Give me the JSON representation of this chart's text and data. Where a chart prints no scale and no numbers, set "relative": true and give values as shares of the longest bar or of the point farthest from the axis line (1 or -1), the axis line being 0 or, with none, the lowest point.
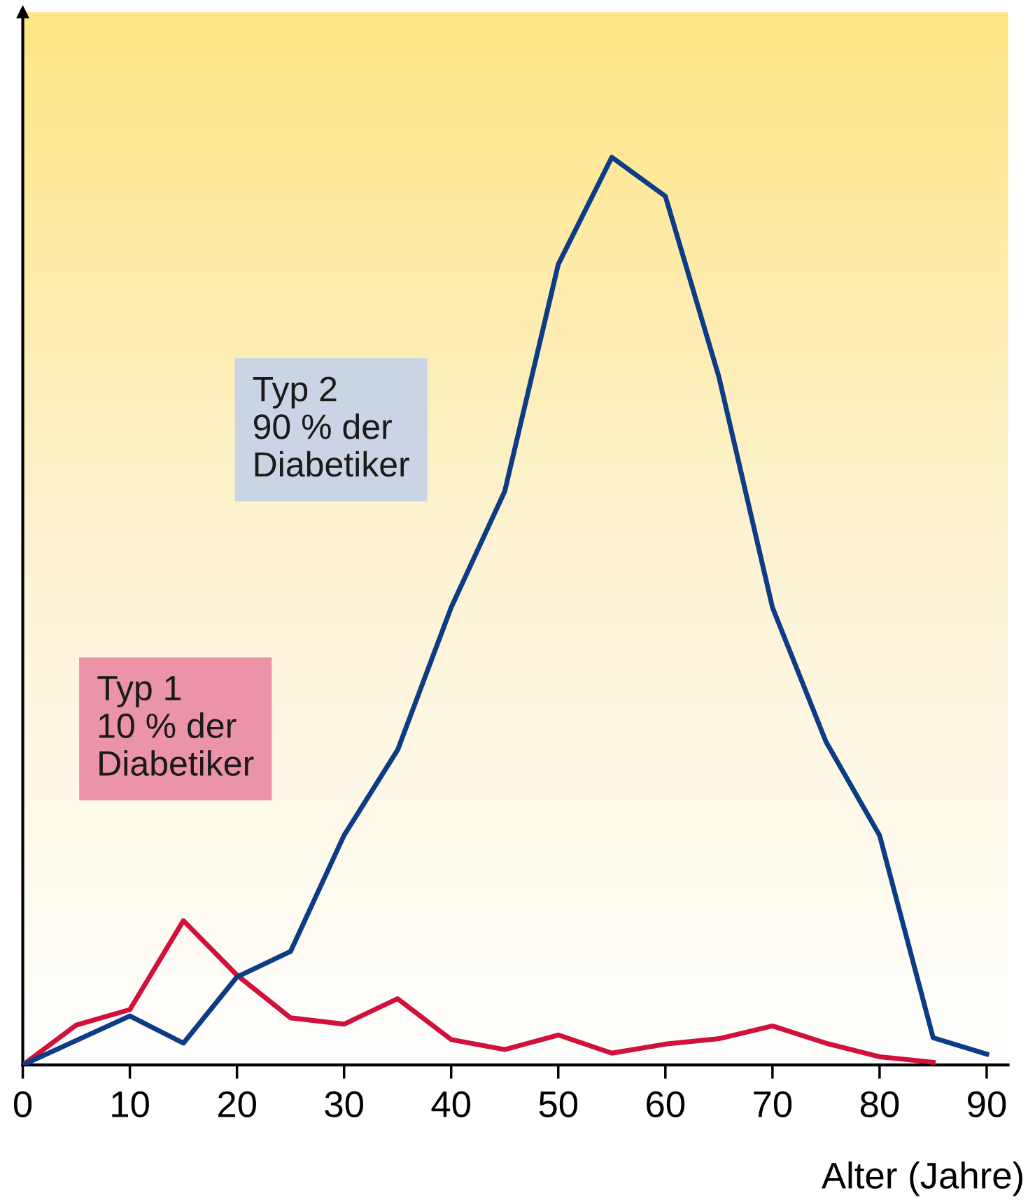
{
  "chart_data": {
    "type": "line",
    "relative": true,
    "xlabel": "Alter (Jahre)",
    "xlim": [
      0,
      92
    ],
    "xticks": [
      0,
      10,
      20,
      30,
      40,
      50,
      60,
      70,
      80,
      90
    ],
    "grid": false,
    "annotations": [
      "Typ 1\n10 % der\nDiabetiker",
      "Typ 2\n90 % der\nDiabetiker"
    ],
    "legend": false,
    "marker": "none",
    "line_style": "solid",
    "series": [
      {
        "color": "#d2103c",
        "x": [
          0,
          5,
          10,
          15,
          20,
          25,
          30,
          35,
          40,
          45,
          50,
          55,
          60,
          65,
          70,
          75,
          80,
          85
        ],
        "values": [
          0,
          0.044,
          0.061,
          0.159,
          0.099,
          0.052,
          0.045,
          0.073,
          0.028,
          0.017,
          0.033,
          0.013,
          0.023,
          0.029,
          0.043,
          0.024,
          0.009,
          0.003
        ]
      },
      {
        "color": "#0d3c86",
        "x": [
          0,
          10,
          15,
          20,
          25,
          30,
          35,
          40,
          45,
          50,
          55,
          60,
          65,
          70,
          75,
          80,
          85,
          90
        ],
        "values": [
          0,
          0.054,
          0.024,
          0.097,
          0.125,
          0.253,
          0.347,
          0.504,
          0.632,
          0.882,
          1,
          0.957,
          0.758,
          0.504,
          0.356,
          0.253,
          0.03,
          0.012
        ]
      }
    ]
  }
}
